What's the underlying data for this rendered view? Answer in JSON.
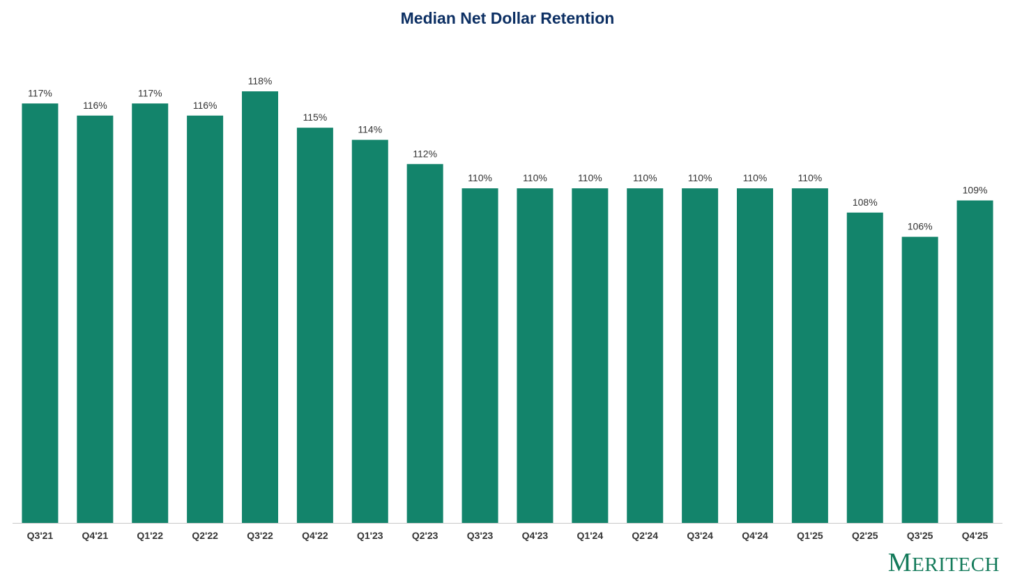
{
  "colors": {
    "bar": "#13846b",
    "title": "#0c2f63",
    "label": "#333333",
    "axis_line": "#c8c8c8",
    "brand": "#137a5a"
  },
  "brand": {
    "first_letter": "M",
    "rest": "ERITECH"
  },
  "chart_data": {
    "type": "bar",
    "title": "Median Net Dollar Retention",
    "xlabel": "",
    "ylabel": "",
    "ylim": [
      0,
      118
    ],
    "grid": false,
    "legend": "none",
    "value_suffix": "%",
    "categories": [
      "Q3'21",
      "Q4'21",
      "Q1'22",
      "Q2'22",
      "Q3'22",
      "Q4'22",
      "Q1'23",
      "Q2'23",
      "Q3'23",
      "Q4'23",
      "Q1'24",
      "Q2'24",
      "Q3'24",
      "Q4'24",
      "Q1'25",
      "Q2'25",
      "Q3'25",
      "Q4'25"
    ],
    "values": [
      117,
      116,
      117,
      116,
      118,
      115,
      114,
      112,
      110,
      110,
      110,
      110,
      110,
      110,
      110,
      108,
      106,
      109
    ]
  }
}
